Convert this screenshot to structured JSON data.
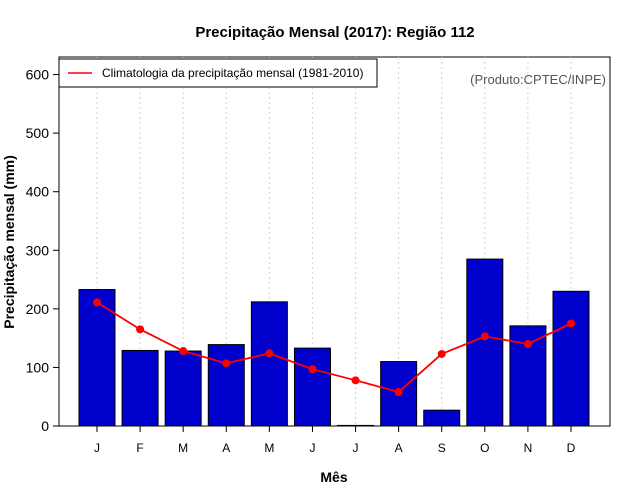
{
  "chart_data": {
    "type": "bar",
    "title": "Precipitação Mensal (2017): Região 112",
    "xlabel": "Mês",
    "ylabel": "Precipitação mensal (mm)",
    "ylim": [
      0,
      630
    ],
    "yticks": [
      0,
      100,
      200,
      300,
      400,
      500,
      600
    ],
    "grid": true,
    "categories": [
      "J",
      "F",
      "M",
      "A",
      "M",
      "J",
      "J",
      "A",
      "S",
      "O",
      "N",
      "D"
    ],
    "series": [
      {
        "name": "Precipitação mensal (2017)",
        "type": "bar",
        "color": "#0000CD",
        "values": [
          233,
          129,
          128,
          139,
          212,
          133,
          1,
          110,
          27,
          285,
          171,
          230
        ]
      },
      {
        "name": "Climatologia da precipitação mensal (1981-2010)",
        "type": "line",
        "color": "#FF0000",
        "values": [
          211,
          165,
          128,
          107,
          124,
          97,
          78,
          58,
          123,
          153,
          140,
          175
        ]
      }
    ],
    "legend": {
      "position": "top-left",
      "label": "Climatologia da precipitação mensal (1981-2010)"
    },
    "annotation": "(Produto:CPTEC/INPE)"
  }
}
